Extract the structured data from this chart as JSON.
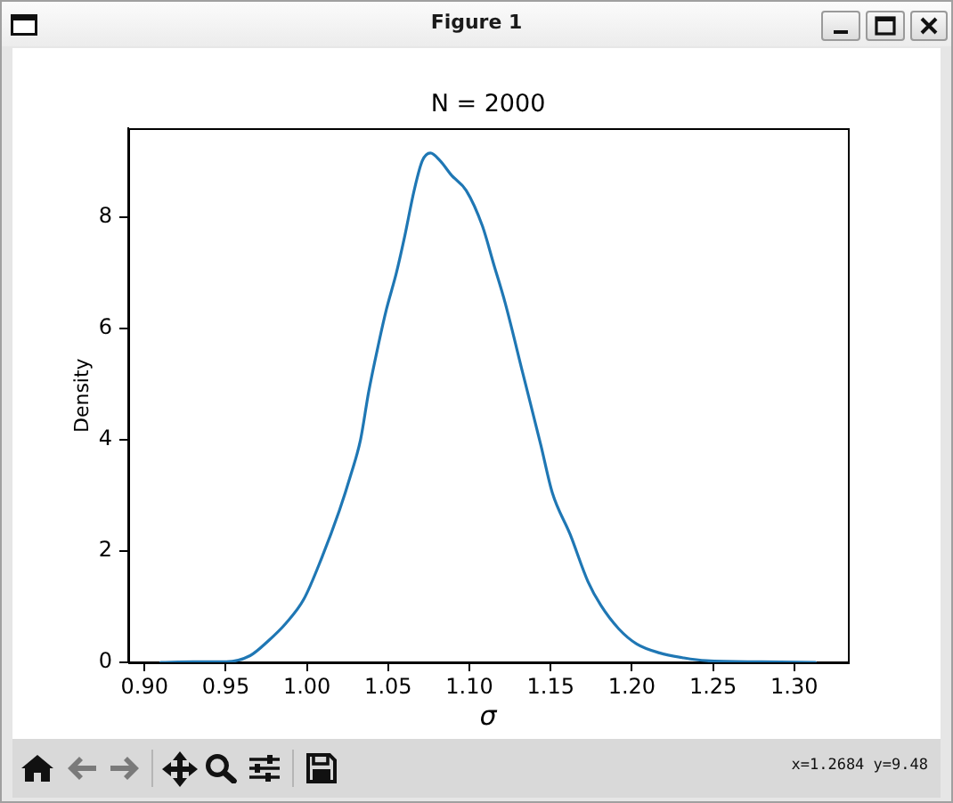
{
  "chart_data": {
    "type": "line",
    "title": "N = 2000",
    "xlabel": "σ",
    "ylabel": "Density",
    "annotations": [
      "Figure 1",
      "x=1.2684 y=9.48"
    ],
    "x": [
      0.91,
      0.93,
      0.95,
      0.965,
      0.976,
      0.987,
      0.998,
      1.009,
      1.02,
      1.027,
      1.033,
      1.038,
      1.044,
      1.049,
      1.055,
      1.06,
      1.066,
      1.071,
      1.076,
      1.082,
      1.089,
      1.098,
      1.108,
      1.115,
      1.122,
      1.133,
      1.144,
      1.151,
      1.162,
      1.173,
      1.181,
      1.192,
      1.203,
      1.217,
      1.232,
      1.246,
      1.28,
      1.313
    ],
    "values": [
      0,
      0.01,
      0.01,
      0.12,
      0.38,
      0.7,
      1.13,
      1.87,
      2.73,
      3.37,
      4.0,
      4.86,
      5.71,
      6.35,
      6.99,
      7.63,
      8.48,
      9.01,
      9.15,
      9.01,
      8.75,
      8.48,
      7.84,
      7.15,
      6.46,
      5.18,
      3.9,
      3.05,
      2.3,
      1.45,
      1.02,
      0.6,
      0.33,
      0.17,
      0.08,
      0.03,
      0.01,
      0
    ],
    "color": "#1f77b4",
    "line_style": "solid",
    "marker": "none",
    "xlim": [
      0.89,
      1.333
    ],
    "xticks": [
      {
        "value": 0.9,
        "label": "0.90"
      },
      {
        "value": 0.95,
        "label": "0.95"
      },
      {
        "value": 1.0,
        "label": "1.00"
      },
      {
        "value": 1.05,
        "label": "1.05"
      },
      {
        "value": 1.1,
        "label": "1.10"
      },
      {
        "value": 1.15,
        "label": "1.15"
      },
      {
        "value": 1.2,
        "label": "1.20"
      },
      {
        "value": 1.25,
        "label": "1.25"
      },
      {
        "value": 1.3,
        "label": "1.30"
      }
    ],
    "ylim": [
      0,
      9.59
    ],
    "yticks": [
      0,
      2,
      4,
      6,
      8
    ],
    "grid": false,
    "legend": false
  }
}
